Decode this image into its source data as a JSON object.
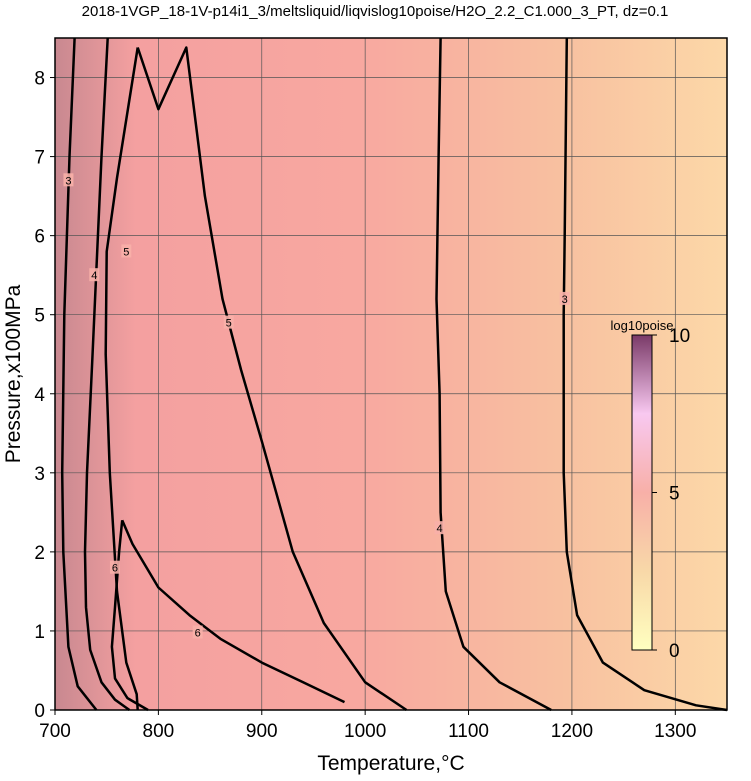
{
  "chart_data": {
    "type": "contour",
    "title": "2018-1VGP_18-1V-p14i1_3/meltsliquid/liqvislog10poise/H2O_2.2_C1.000_3_PT, dz=0.1",
    "x_label": "Temperature,°C",
    "y_label": "Pressure,x100MPa",
    "xlim": [
      700,
      1350
    ],
    "ylim": [
      0,
      8.5
    ],
    "xticks": [
      700,
      800,
      900,
      1000,
      1100,
      1200,
      1300
    ],
    "yticks": [
      0,
      1,
      2,
      3,
      4,
      5,
      6,
      7,
      8
    ],
    "grid": true,
    "line_color": "#000000",
    "contours": [
      {
        "level": 3,
        "x": [
          1195,
          1193,
          1192,
          1192,
          1195,
          1205,
          1230,
          1270,
          1320,
          1350
        ],
        "y": [
          8.5,
          6,
          5,
          3,
          2,
          1.2,
          0.6,
          0.25,
          0.06,
          0
        ],
        "label_at": [
          1193,
          5.2
        ]
      },
      {
        "level": 3,
        "x": [
          719,
          714,
          709,
          707,
          708,
          713,
          722,
          740
        ],
        "y": [
          8.5,
          7,
          5,
          3,
          2,
          0.8,
          0.3,
          0
        ],
        "label_at": [
          713,
          6.7
        ]
      },
      {
        "level": 4,
        "x": [
          1073,
          1071,
          1069,
          1072,
          1073,
          1078,
          1095,
          1130,
          1180
        ],
        "y": [
          8.5,
          7,
          5.2,
          4,
          2.5,
          1.5,
          0.8,
          0.35,
          0
        ],
        "label_at": [
          1072,
          2.3
        ]
      },
      {
        "level": 4,
        "x": [
          751,
          745,
          736,
          731,
          729,
          730,
          734,
          745,
          758,
          772
        ],
        "y": [
          8.5,
          7,
          4.4,
          3,
          2,
          1.3,
          0.76,
          0.35,
          0.13,
          0
        ],
        "label_at": [
          738,
          5.5
        ]
      },
      {
        "level": 5,
        "x": [
          780,
          779,
          769,
          760,
          753,
          749,
          750,
          760,
          780
        ],
        "y": [
          0,
          0.2,
          0.6,
          1.5,
          3,
          4.5,
          5.8,
          6.73,
          8.38
        ],
        "label_at": [
          769,
          5.8
        ]
      },
      {
        "level": 5,
        "x": [
          780,
          800,
          827,
          845,
          862,
          880,
          900,
          930,
          960,
          1000,
          1040
        ],
        "y": [
          8.38,
          7.6,
          8.38,
          6.5,
          5.2,
          4.3,
          3.4,
          2,
          1.1,
          0.35,
          0
        ],
        "label_at": [
          868,
          4.9
        ]
      },
      {
        "level": 6,
        "x": [
          765,
          762,
          758,
          755,
          758,
          770,
          790
        ],
        "y": [
          2.4,
          2,
          1.3,
          0.8,
          0.4,
          0.15,
          0
        ],
        "label_at": [
          758,
          1.8
        ]
      },
      {
        "level": 6,
        "x": [
          765,
          775,
          800,
          830,
          860,
          900,
          940,
          980
        ],
        "y": [
          2.4,
          2.1,
          1.55,
          1.2,
          0.9,
          0.6,
          0.35,
          0.1
        ],
        "label_at": [
          838,
          0.98
        ]
      }
    ],
    "colorbar": {
      "title": "log10poise",
      "lim": [
        0,
        10
      ],
      "ticks": [
        0,
        5,
        10
      ],
      "colormap": [
        "#ffffc0",
        "#f8d8a8",
        "#f8b0a8",
        "#f8c8f0",
        "#7a3a68"
      ]
    }
  }
}
